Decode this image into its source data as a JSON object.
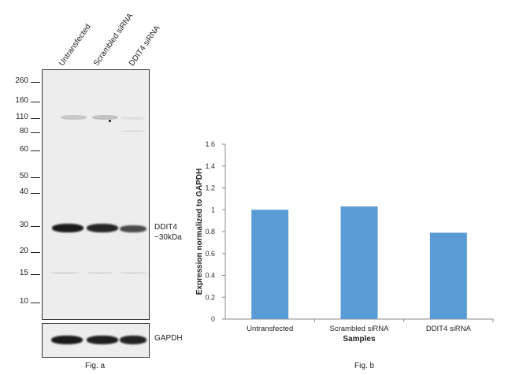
{
  "blot": {
    "lanes": [
      "Untransfected",
      "Scrambled siRNA",
      "DDIT4 siRNA"
    ],
    "markers": [
      "260",
      "160",
      "110",
      "80",
      "60",
      "50",
      "40",
      "30",
      "20",
      "15",
      "10"
    ],
    "target_label": "DDIT4",
    "target_size": "~30kDa",
    "loading_label": "GAPDH",
    "caption": "Fig. a"
  },
  "chart": {
    "caption": "Fig. b",
    "bar_color": "#5b9bd5"
  },
  "chart_data": {
    "type": "bar",
    "categories": [
      "Untransfected",
      "Scrambled siRNA",
      "DDIT4 siRNA"
    ],
    "values": [
      1.0,
      1.03,
      0.79
    ],
    "xlabel": "Samples",
    "ylabel": "Expression normalized to GAPDH",
    "ylim": [
      0,
      1.6
    ],
    "yticks": [
      "0",
      "0.2",
      "0.4",
      "0.6",
      "0.8",
      "1",
      "1.2",
      "1.4",
      "1.6"
    ],
    "grid": false
  }
}
